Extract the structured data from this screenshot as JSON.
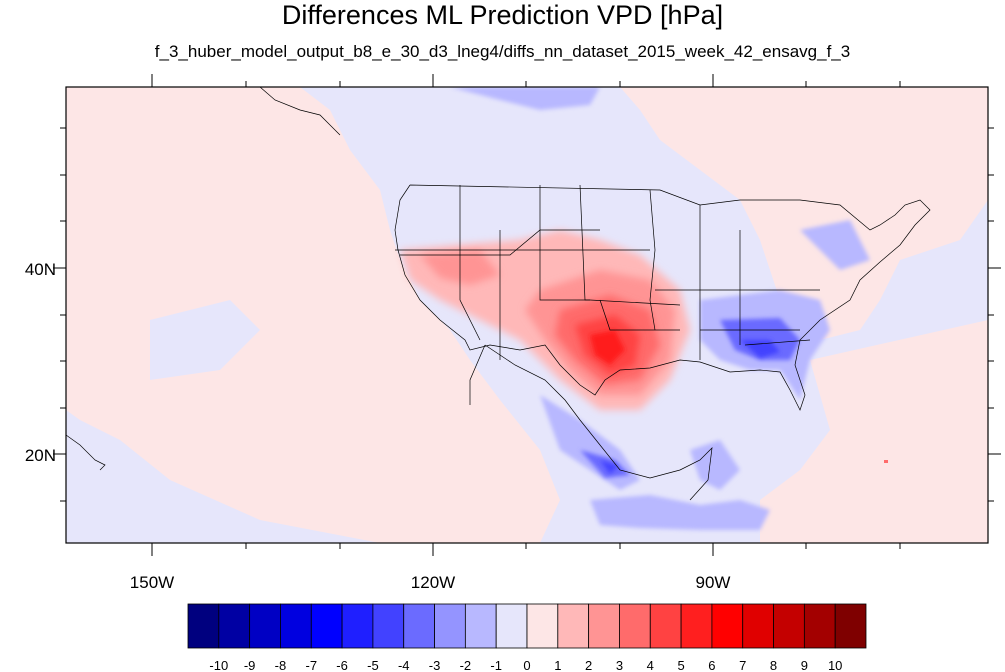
{
  "title": "Differences ML Prediction VPD [hPa]",
  "subtitle": "f_3_huber_model_output_b8_e_30_d3_lneg4/diffs_nn_dataset_2015_week_42_ensavg_f_3",
  "map": {
    "lon_labels": [
      "150W",
      "120W",
      "90W"
    ],
    "lat_labels": [
      "40N",
      "20N"
    ],
    "colors": {
      "background_field": "#e6e6fb",
      "positive_light": "#fde6e6",
      "border": "#000000"
    }
  },
  "colorbar": {
    "labels": [
      "-10",
      "-9",
      "-8",
      "-7",
      "-6",
      "-5",
      "-4",
      "-3",
      "-2",
      "-1",
      "0",
      "1",
      "2",
      "3",
      "4",
      "5",
      "6",
      "7",
      "8",
      "9",
      "10"
    ],
    "colors": [
      "#00007f",
      "#0000a3",
      "#0000c4",
      "#0000e0",
      "#0000ff",
      "#1f1fff",
      "#4242ff",
      "#6b6bff",
      "#9494ff",
      "#b8b8ff",
      "#e6e6fb",
      "#fde6e6",
      "#ffb8b8",
      "#ff9494",
      "#ff6b6b",
      "#ff4242",
      "#ff1f1f",
      "#ff0000",
      "#e00000",
      "#c40000",
      "#a30000",
      "#7f0000"
    ]
  }
}
